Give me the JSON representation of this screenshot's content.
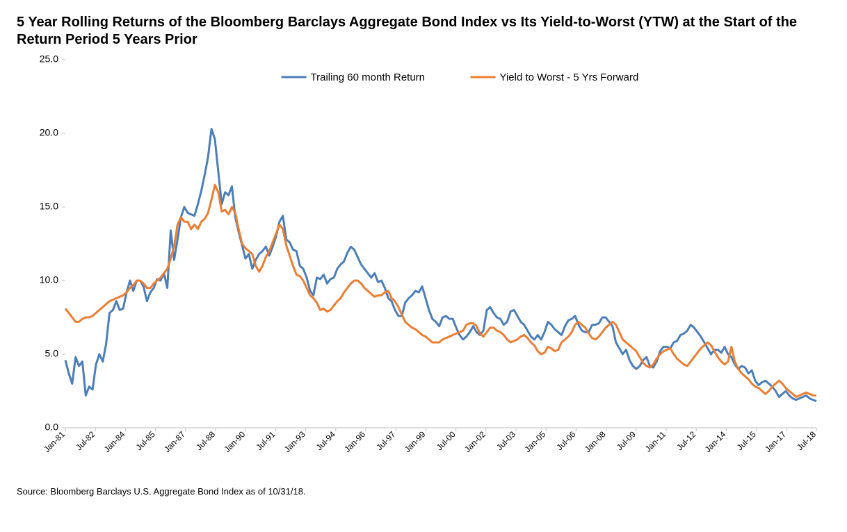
{
  "title": "5 Year Rolling Returns of the Bloomberg Barclays Aggregate Bond Index vs Its Yield-to-Worst (YTW) at the Start of the Return Period 5 Years Prior",
  "source": "Source: Bloomberg Barclays U.S. Aggregate Bond Index as of 10/31/18.",
  "chart": {
    "type": "line",
    "background_color": "#ffffff",
    "axis_color": "#bfbfbf",
    "tick_color": "#bfbfbf",
    "ylim": [
      0.0,
      25.0
    ],
    "ytick_step": 5.0,
    "yticks": [
      "0.0",
      "5.0",
      "10.0",
      "15.0",
      "20.0",
      "25.0"
    ],
    "xticks": [
      "Jan-81",
      "Jul-82",
      "Jan-84",
      "Jul-85",
      "Jan-87",
      "Jul-88",
      "Jan-90",
      "Jul-91",
      "Jan-93",
      "Jul-94",
      "Jan-96",
      "Jul-97",
      "Jan-99",
      "Jul-00",
      "Jan-02",
      "Jul-03",
      "Jan-05",
      "Jul-06",
      "Jan-08",
      "Jul-09",
      "Jan-11",
      "Jul-12",
      "Jan-14",
      "Jul-15",
      "Jan-17",
      "Jul-18"
    ],
    "x_label_rotation_deg": -45,
    "line_width": 3,
    "legend": {
      "position": "top-center",
      "items": [
        {
          "label": "Trailing 60 month Return",
          "color": "#4a7ebb"
        },
        {
          "label": "Yield to Worst - 5 Yrs Forward",
          "color": "#ed7d31"
        }
      ]
    },
    "series": [
      {
        "name": "Trailing 60 month Return",
        "color": "#4a7ebb",
        "values": [
          4.6,
          3.7,
          3.0,
          4.8,
          4.2,
          4.5,
          2.2,
          2.8,
          2.6,
          4.3,
          5.0,
          4.5,
          5.7,
          7.8,
          8.0,
          8.6,
          8.0,
          8.1,
          9.2,
          10.0,
          9.3,
          10.0,
          10.0,
          9.6,
          8.6,
          9.2,
          9.5,
          10.1,
          10.0,
          10.5,
          9.5,
          13.4,
          11.4,
          12.8,
          14.3,
          15.0,
          14.6,
          14.5,
          14.4,
          15.2,
          16.1,
          17.2,
          18.4,
          20.3,
          19.6,
          17.4,
          15.2,
          16.0,
          15.8,
          16.4,
          14.3,
          13.3,
          12.4,
          11.5,
          11.8,
          10.8,
          11.4,
          11.8,
          12.0,
          12.3,
          11.7,
          12.3,
          13.0,
          14.0,
          14.4,
          12.8,
          12.6,
          12.1,
          12.0,
          11.0,
          10.8,
          10.2,
          9.3,
          9.0,
          10.2,
          10.1,
          10.4,
          9.8,
          10.1,
          10.2,
          10.8,
          11.1,
          11.3,
          11.9,
          12.3,
          12.1,
          11.6,
          11.1,
          10.8,
          10.5,
          10.2,
          10.5,
          9.9,
          10.0,
          9.5,
          8.8,
          8.6,
          8.0,
          7.6,
          7.6,
          8.5,
          8.8,
          9.0,
          9.3,
          9.2,
          9.6,
          8.8,
          8.0,
          7.4,
          7.2,
          6.9,
          7.5,
          7.6,
          7.4,
          7.4,
          6.8,
          6.3,
          6.0,
          6.2,
          6.5,
          6.9,
          6.5,
          6.3,
          6.6,
          8.0,
          8.2,
          7.8,
          7.5,
          7.4,
          7.0,
          7.2,
          7.9,
          8.0,
          7.6,
          7.2,
          7.0,
          6.6,
          6.2,
          6.0,
          6.3,
          6.0,
          6.5,
          7.2,
          7.0,
          6.7,
          6.5,
          6.3,
          6.9,
          7.3,
          7.4,
          7.6,
          7.0,
          6.6,
          6.5,
          6.5,
          7.0,
          7.0,
          7.1,
          7.5,
          7.5,
          7.2,
          6.9,
          5.8,
          5.4,
          5.0,
          5.3,
          4.6,
          4.2,
          4.0,
          4.2,
          4.6,
          4.8,
          4.2,
          4.1,
          4.5,
          5.2,
          5.5,
          5.5,
          5.4,
          5.8,
          5.9,
          6.3,
          6.4,
          6.6,
          7.0,
          6.8,
          6.5,
          6.2,
          5.8,
          5.4,
          5.0,
          5.3,
          5.3,
          5.1,
          5.5,
          5.0,
          4.8,
          4.3,
          4.0,
          4.2,
          4.1,
          3.7,
          3.9,
          3.2,
          2.9,
          3.1,
          3.2,
          3.0,
          2.8,
          2.5,
          2.1,
          2.3,
          2.5,
          2.2,
          2.0,
          1.9,
          2.0,
          2.1,
          2.2,
          2.0,
          1.9,
          1.8
        ]
      },
      {
        "name": "Yield to Worst - 5 Yrs Forward",
        "color": "#ed7d31",
        "values": [
          8.1,
          7.8,
          7.5,
          7.2,
          7.2,
          7.4,
          7.5,
          7.5,
          7.6,
          7.8,
          8.0,
          8.2,
          8.4,
          8.6,
          8.7,
          8.8,
          8.9,
          9.0,
          9.2,
          9.5,
          9.7,
          10.0,
          10.0,
          9.8,
          9.5,
          9.5,
          9.8,
          10.0,
          10.2,
          10.5,
          10.8,
          11.5,
          12.3,
          13.8,
          14.3,
          14.0,
          14.0,
          13.5,
          13.8,
          13.5,
          14.0,
          14.2,
          14.6,
          15.5,
          16.5,
          16.0,
          14.7,
          14.8,
          14.5,
          15.0,
          14.6,
          13.5,
          12.5,
          12.2,
          12.0,
          11.8,
          11.0,
          10.6,
          11.0,
          11.6,
          12.0,
          12.6,
          13.2,
          13.8,
          13.5,
          12.4,
          11.7,
          11.0,
          10.4,
          10.3,
          10.0,
          9.5,
          9.0,
          8.8,
          8.5,
          8.0,
          8.1,
          7.9,
          8.0,
          8.3,
          8.6,
          8.8,
          9.2,
          9.5,
          9.8,
          10.0,
          10.0,
          9.8,
          9.5,
          9.3,
          9.1,
          8.9,
          9.0,
          9.0,
          9.2,
          9.3,
          8.8,
          8.6,
          8.2,
          7.7,
          7.2,
          7.0,
          6.8,
          6.7,
          6.5,
          6.3,
          6.2,
          6.0,
          5.8,
          5.8,
          5.8,
          6.0,
          6.1,
          6.2,
          6.3,
          6.4,
          6.5,
          6.6,
          7.0,
          7.1,
          7.1,
          6.9,
          6.4,
          6.2,
          6.5,
          6.8,
          6.8,
          6.6,
          6.5,
          6.3,
          6.0,
          5.8,
          5.9,
          6.0,
          6.2,
          6.3,
          6.1,
          5.8,
          5.6,
          5.2,
          5.0,
          5.1,
          5.5,
          5.4,
          5.2,
          5.3,
          5.8,
          6.0,
          6.2,
          6.5,
          7.0,
          7.2,
          7.0,
          6.8,
          6.4,
          6.1,
          6.0,
          6.2,
          6.5,
          6.8,
          7.0,
          7.2,
          7.0,
          6.5,
          6.0,
          5.8,
          5.6,
          5.4,
          5.2,
          4.8,
          4.4,
          4.2,
          4.1,
          4.3,
          4.7,
          5.0,
          5.2,
          5.3,
          5.4,
          5.0,
          4.7,
          4.5,
          4.3,
          4.2,
          4.5,
          4.8,
          5.1,
          5.4,
          5.6,
          5.8,
          5.6,
          5.2,
          4.8,
          4.5,
          4.3,
          4.5,
          5.5,
          4.5,
          4.0,
          3.7,
          3.5,
          3.3,
          3.0,
          2.8,
          2.7,
          2.5,
          2.3,
          2.5,
          2.8,
          3.0,
          3.2,
          3.0,
          2.7,
          2.5,
          2.3,
          2.1,
          2.2,
          2.3,
          2.4,
          2.3,
          2.2,
          2.2
        ]
      }
    ]
  }
}
